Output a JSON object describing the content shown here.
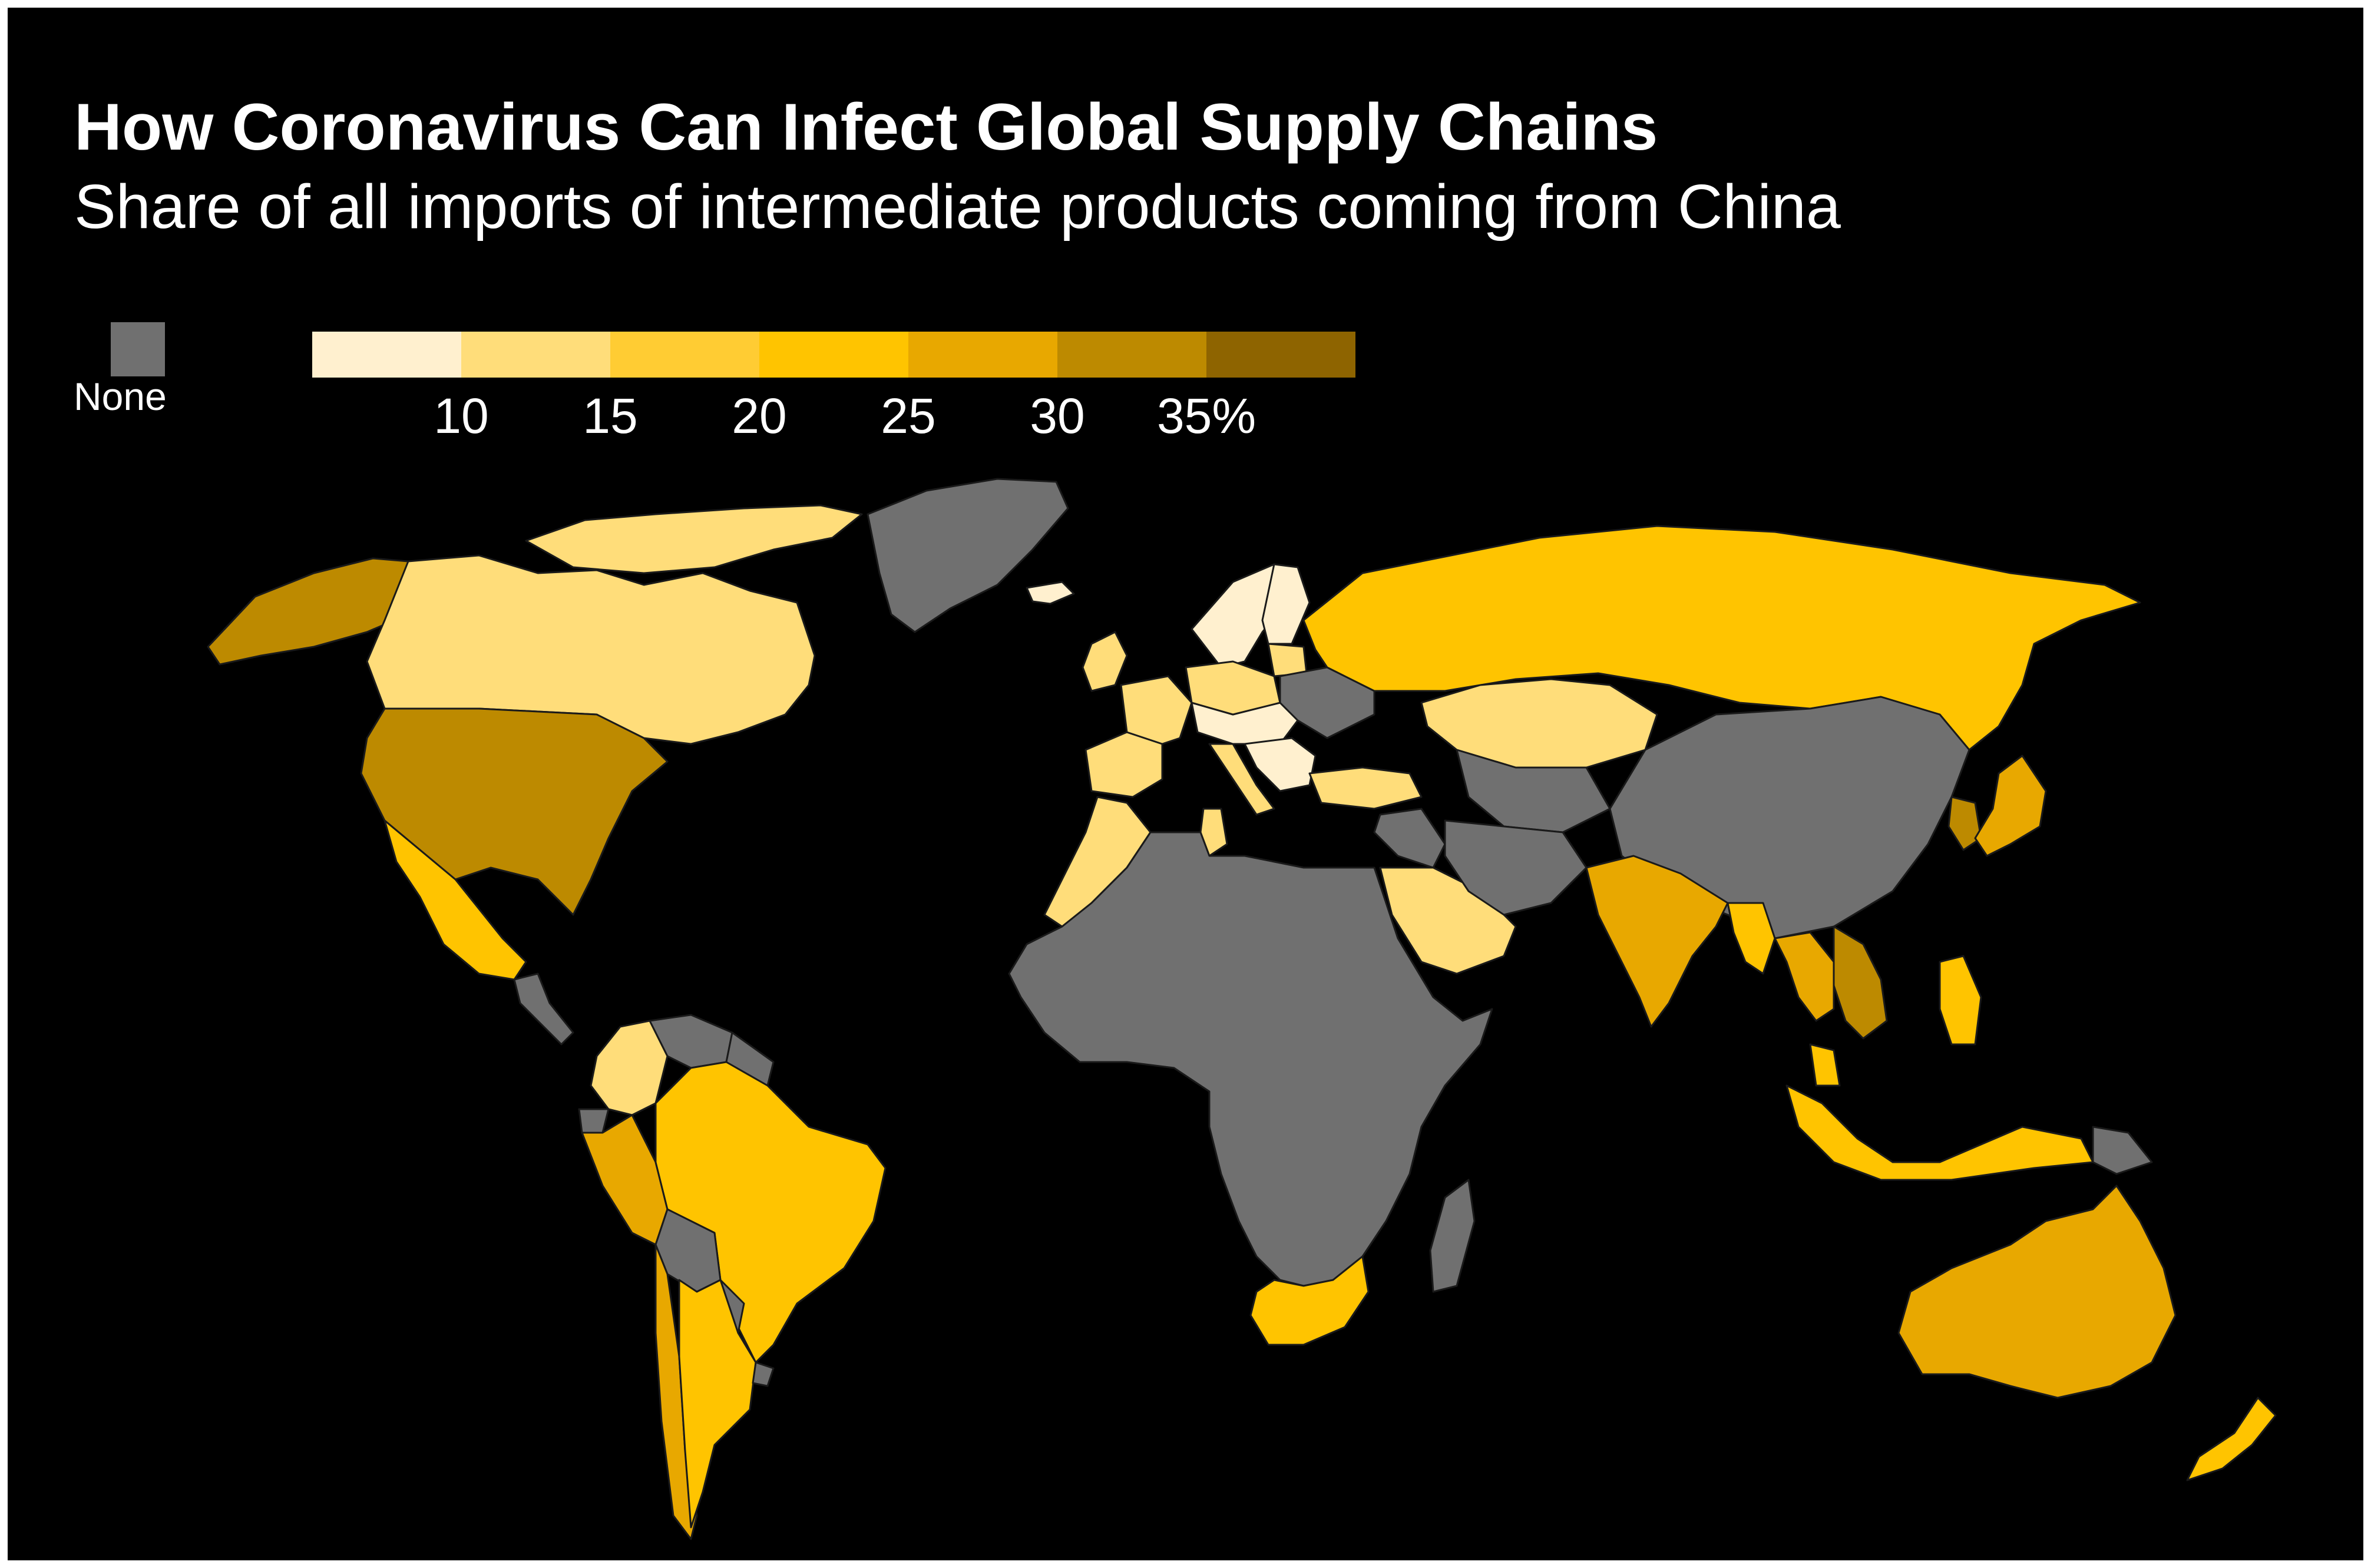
{
  "title": "How Coronavirus Can Infect Global Supply Chains",
  "subtitle": "Share of all imports of intermediate products coming from China",
  "legend": {
    "none_label": "None",
    "none_color": "#707070",
    "bin_colors": [
      "#fff0cf",
      "#ffdd7a",
      "#ffcc33",
      "#ffc400",
      "#e8a800",
      "#bd8a00",
      "#8e6400"
    ],
    "ticks": [
      "10",
      "15",
      "20",
      "25",
      "30",
      "35%"
    ]
  },
  "chart_data": {
    "type": "choropleth",
    "title": "How Coronavirus Can Infect Global Supply Chains",
    "subtitle": "Share of all imports of intermediate products coming from China",
    "unit": "%",
    "legend_bins": [
      {
        "range": [
          5,
          10
        ],
        "color": "#fff0cf"
      },
      {
        "range": [
          10,
          15
        ],
        "color": "#ffdd7a"
      },
      {
        "range": [
          15,
          20
        ],
        "color": "#ffcc33"
      },
      {
        "range": [
          20,
          25
        ],
        "color": "#ffc400"
      },
      {
        "range": [
          25,
          30
        ],
        "color": "#e8a800"
      },
      {
        "range": [
          30,
          35
        ],
        "color": "#bd8a00"
      },
      {
        "range": [
          35,
          40
        ],
        "color": "#8e6400"
      }
    ],
    "no_data_color": "#707070",
    "regions": [
      {
        "id": "alaska",
        "color": "#bd8a00"
      },
      {
        "id": "canada",
        "color": "#ffdd7a"
      },
      {
        "id": "canada-arctic",
        "color": "#ffdd7a"
      },
      {
        "id": "usa",
        "color": "#bd8a00"
      },
      {
        "id": "mexico",
        "color": "#ffc400"
      },
      {
        "id": "central-america",
        "color": "#707070"
      },
      {
        "id": "greenland",
        "color": "#707070"
      },
      {
        "id": "iceland",
        "color": "#fff0cf"
      },
      {
        "id": "colombia",
        "color": "#ffdd7a"
      },
      {
        "id": "venezuela",
        "color": "#707070"
      },
      {
        "id": "guianas",
        "color": "#707070"
      },
      {
        "id": "ecuador",
        "color": "#707070"
      },
      {
        "id": "peru",
        "color": "#e8a800"
      },
      {
        "id": "brazil",
        "color": "#ffc400"
      },
      {
        "id": "bolivia",
        "color": "#707070"
      },
      {
        "id": "paraguay",
        "color": "#707070"
      },
      {
        "id": "chile",
        "color": "#e8a800"
      },
      {
        "id": "argentina",
        "color": "#ffc400"
      },
      {
        "id": "uruguay",
        "color": "#707070"
      },
      {
        "id": "uk-ireland",
        "color": "#ffdd7a"
      },
      {
        "id": "scandinavia",
        "color": "#fff0cf"
      },
      {
        "id": "finland",
        "color": "#fff0cf"
      },
      {
        "id": "baltics",
        "color": "#ffdd7a"
      },
      {
        "id": "iberia",
        "color": "#ffdd7a"
      },
      {
        "id": "france",
        "color": "#ffdd7a"
      },
      {
        "id": "central-europe",
        "color": "#fff0cf"
      },
      {
        "id": "poland-germany",
        "color": "#ffdd7a"
      },
      {
        "id": "italy",
        "color": "#ffdd7a"
      },
      {
        "id": "balkans",
        "color": "#fff0cf"
      },
      {
        "id": "belarus-ukraine",
        "color": "#707070"
      },
      {
        "id": "turkey",
        "color": "#ffdd7a"
      },
      {
        "id": "russia",
        "color": "#ffc400"
      },
      {
        "id": "kazakhstan",
        "color": "#ffdd7a"
      },
      {
        "id": "central-asia",
        "color": "#707070"
      },
      {
        "id": "mongolia-china",
        "color": "#707070"
      },
      {
        "id": "middle-east",
        "color": "#707070"
      },
      {
        "id": "saudi-arabia",
        "color": "#ffdd7a"
      },
      {
        "id": "iran-afghanistan",
        "color": "#707070"
      },
      {
        "id": "india",
        "color": "#e8a800"
      },
      {
        "id": "myanmar",
        "color": "#ffc400"
      },
      {
        "id": "thailand",
        "color": "#e8a800"
      },
      {
        "id": "vietnam-cambodia",
        "color": "#bd8a00"
      },
      {
        "id": "korea",
        "color": "#bd8a00"
      },
      {
        "id": "japan",
        "color": "#e8a800"
      },
      {
        "id": "philippines",
        "color": "#ffc400"
      },
      {
        "id": "malaysia",
        "color": "#ffc400"
      },
      {
        "id": "indonesia",
        "color": "#ffc400"
      },
      {
        "id": "papua",
        "color": "#707070"
      },
      {
        "id": "australia",
        "color": "#e8a800"
      },
      {
        "id": "new-zealand",
        "color": "#ffc400"
      },
      {
        "id": "morocco",
        "color": "#ffdd7a"
      },
      {
        "id": "tunisia",
        "color": "#ffdd7a"
      },
      {
        "id": "africa",
        "color": "#707070"
      },
      {
        "id": "south-africa",
        "color": "#ffc400"
      },
      {
        "id": "madagascar",
        "color": "#707070"
      }
    ]
  }
}
